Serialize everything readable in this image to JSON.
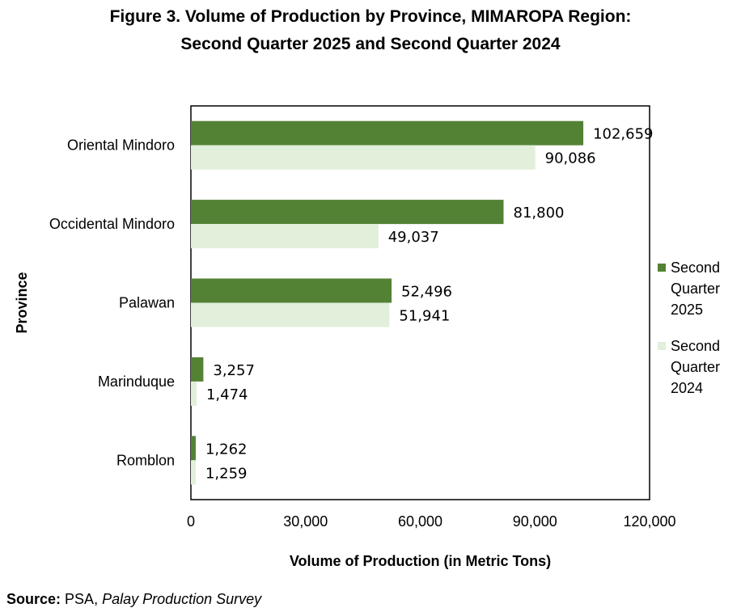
{
  "title_line1": "Figure 3. Volume of Production by Province, MIMAROPA Region:",
  "title_line2": "Second Quarter 2025 and Second Quarter 2024",
  "source": {
    "label": "Source:",
    "org": "PSA, ",
    "survey": "Palay Production Survey"
  },
  "chart_data": {
    "type": "bar",
    "orientation": "horizontal",
    "title": "Figure 3. Volume of Production by Province, MIMAROPA Region: Second Quarter 2025 and Second Quarter 2024",
    "xlabel": "Volume of Production (in Metric Tons)",
    "ylabel": "Province",
    "categories": [
      "Oriental Mindoro",
      "Occidental Mindoro",
      "Palawan",
      "Marinduque",
      "Romblon"
    ],
    "series": [
      {
        "name": "Second Quarter 2025",
        "legend_lines": [
          "Second",
          "Quarter",
          "2025"
        ],
        "color": "#548235",
        "values": [
          102659,
          81800,
          52496,
          3257,
          1262
        ],
        "labels": [
          "102,659",
          "81,800",
          "52,496",
          "3,257",
          "1,262"
        ]
      },
      {
        "name": "Second Quarter 2024",
        "legend_lines": [
          "Second",
          "Quarter",
          "2024"
        ],
        "color": "#E2EFDA",
        "values": [
          90086,
          49037,
          51941,
          1474,
          1259
        ],
        "labels": [
          "90,086",
          "49,037",
          "51,941",
          "1,474",
          "1,259"
        ]
      }
    ],
    "xlim": [
      0,
      120000
    ],
    "xticks": [
      0,
      30000,
      60000,
      90000,
      120000
    ],
    "xtick_labels": [
      "0",
      "30,000",
      "60,000",
      "90,000",
      "120,000"
    ],
    "grid": false,
    "legend_position": "right"
  }
}
